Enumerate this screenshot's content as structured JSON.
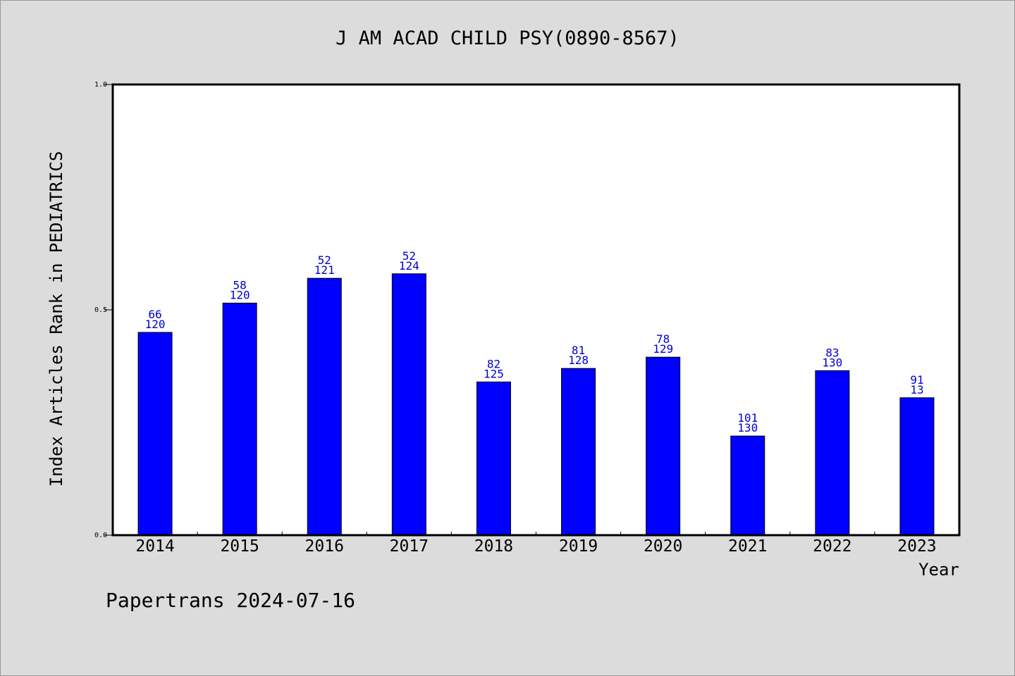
{
  "colors": {
    "background": "#dcdcdc",
    "plot_background": "#ffffff",
    "bar": "#0000ff",
    "bar_label": "#0000cc",
    "axis": "#000000"
  },
  "chart_data": {
    "type": "bar",
    "title": "J AM ACAD CHILD PSY(0890-8567)",
    "xlabel": "Year",
    "ylabel": "Index Articles Rank in PEDIATRICS",
    "ylim": [
      0,
      1.0
    ],
    "yticks": [
      "0.0",
      "0.5",
      "1.0"
    ],
    "grid": false,
    "legend": "none",
    "categories": [
      "2014",
      "2015",
      "2016",
      "2017",
      "2018",
      "2019",
      "2020",
      "2021",
      "2022",
      "2023"
    ],
    "values": [
      0.45,
      0.515,
      0.57,
      0.58,
      0.34,
      0.37,
      0.395,
      0.22,
      0.365,
      0.305
    ],
    "labels_top": [
      "66",
      "58",
      "52",
      "52",
      "82",
      "81",
      "78",
      "101",
      "83",
      "91"
    ],
    "labels_bottom": [
      "120",
      "120",
      "121",
      "124",
      "125",
      "128",
      "129",
      "130",
      "130",
      "13"
    ]
  },
  "footer": "Papertrans 2024-07-16"
}
